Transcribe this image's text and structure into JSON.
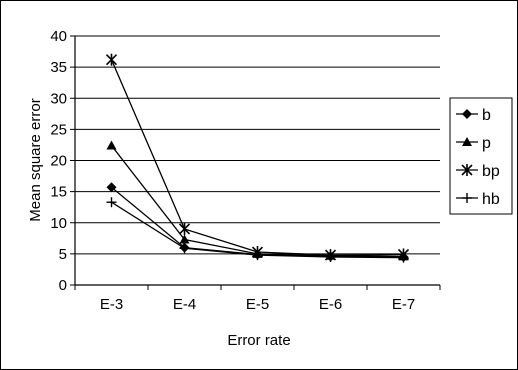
{
  "chart_data": {
    "type": "line",
    "title": "",
    "xlabel": "Error rate",
    "ylabel": "Mean square error",
    "categories": [
      "E-3",
      "E-4",
      "E-5",
      "E-6",
      "E-7"
    ],
    "ylim": [
      0,
      40
    ],
    "yticks": [
      0,
      5,
      10,
      15,
      20,
      25,
      30,
      35,
      40
    ],
    "grid": "horizontal",
    "legend_position": "right",
    "series": [
      {
        "name": "b",
        "marker": "diamond",
        "values": [
          15.7,
          6.0,
          4.9,
          4.6,
          4.5
        ]
      },
      {
        "name": "p",
        "marker": "triangle",
        "values": [
          22.4,
          7.3,
          5.0,
          4.7,
          4.6
        ]
      },
      {
        "name": "bp",
        "marker": "asterisk",
        "values": [
          36.2,
          9.0,
          5.3,
          4.8,
          4.9
        ]
      },
      {
        "name": "hb",
        "marker": "plus",
        "values": [
          13.3,
          5.9,
          4.8,
          4.5,
          4.4
        ]
      }
    ],
    "colors": {
      "line": "#000000",
      "grid": "#000000",
      "background": "#ffffff"
    }
  }
}
